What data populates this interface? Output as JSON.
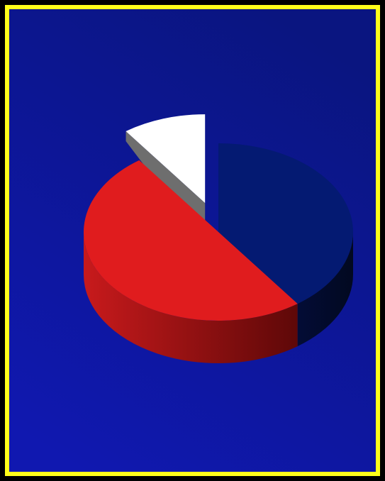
{
  "colors": {
    "frame_border": "#ffff1a",
    "background_top": "#0a1580",
    "background_bottom": "#1018b0",
    "slice_colors": [
      "#041a72",
      "#e01c1e",
      "#ffffff"
    ]
  },
  "chart_data": {
    "type": "pie",
    "style": "3d-exploded",
    "categories": [
      "",
      "",
      ""
    ],
    "values": [
      40,
      50,
      10
    ],
    "exploded_slice_index": 2,
    "legend": "none",
    "title": ""
  }
}
